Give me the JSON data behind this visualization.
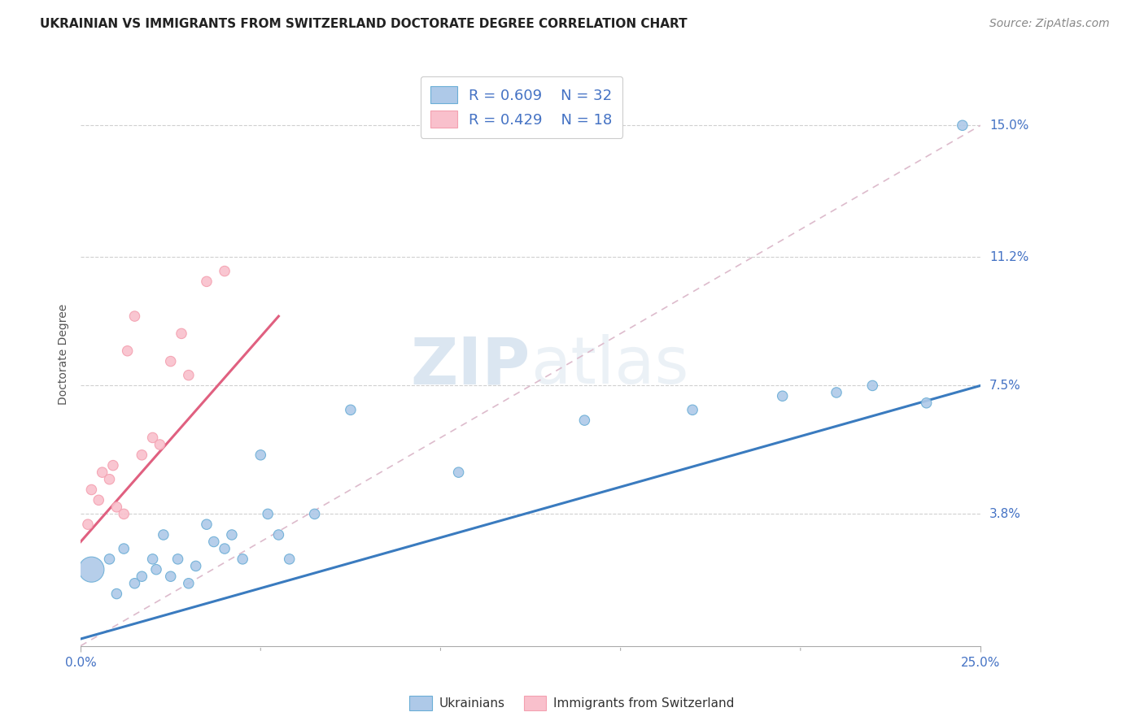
{
  "title": "UKRAINIAN VS IMMIGRANTS FROM SWITZERLAND DOCTORATE DEGREE CORRELATION CHART",
  "source_text": "Source: ZipAtlas.com",
  "ylabel": "Doctorate Degree",
  "y_tick_values": [
    3.8,
    7.5,
    11.2,
    15.0
  ],
  "y_tick_labels": [
    "3.8%",
    "7.5%",
    "11.2%",
    "15.0%"
  ],
  "xlim": [
    0.0,
    25.0
  ],
  "ylim": [
    0.0,
    16.8
  ],
  "legend_r1": "R = 0.609",
  "legend_n1": "N = 32",
  "legend_r2": "R = 0.429",
  "legend_n2": "N = 18",
  "blue_color": "#6baed6",
  "pink_color": "#f4a0b0",
  "blue_fill": "#aec9e8",
  "pink_fill": "#f9c0cc",
  "line_blue": "#3a7bbf",
  "line_pink": "#e06080",
  "watermark_text": "ZIPatlas",
  "blue_scatter_x": [
    0.3,
    0.8,
    1.0,
    1.2,
    1.5,
    1.7,
    2.0,
    2.1,
    2.3,
    2.5,
    2.7,
    3.0,
    3.2,
    3.5,
    3.7,
    4.0,
    4.2,
    4.5,
    5.0,
    5.2,
    5.5,
    5.8,
    6.5,
    7.5,
    10.5,
    14.0,
    17.0,
    19.5,
    21.0,
    22.0,
    23.5,
    24.5
  ],
  "blue_scatter_y": [
    2.2,
    2.5,
    1.5,
    2.8,
    1.8,
    2.0,
    2.5,
    2.2,
    3.2,
    2.0,
    2.5,
    1.8,
    2.3,
    3.5,
    3.0,
    2.8,
    3.2,
    2.5,
    5.5,
    3.8,
    3.2,
    2.5,
    3.8,
    6.8,
    5.0,
    6.5,
    6.8,
    7.2,
    7.3,
    7.5,
    7.0,
    15.0
  ],
  "blue_scatter_sizes": [
    80,
    80,
    80,
    80,
    80,
    80,
    80,
    80,
    80,
    80,
    80,
    80,
    80,
    80,
    80,
    80,
    80,
    80,
    80,
    80,
    80,
    80,
    80,
    80,
    80,
    80,
    80,
    80,
    80,
    80,
    80,
    80
  ],
  "blue_large_idx": 0,
  "blue_large_size": 500,
  "pink_scatter_x": [
    0.2,
    0.3,
    0.5,
    0.6,
    0.8,
    0.9,
    1.0,
    1.2,
    1.3,
    1.5,
    1.7,
    2.0,
    2.2,
    2.5,
    2.8,
    3.0,
    3.5,
    4.0
  ],
  "pink_scatter_y": [
    3.5,
    4.5,
    4.2,
    5.0,
    4.8,
    5.2,
    4.0,
    3.8,
    8.5,
    9.5,
    5.5,
    6.0,
    5.8,
    8.2,
    9.0,
    7.8,
    10.5,
    10.8
  ],
  "blue_line_x": [
    0.0,
    25.0
  ],
  "blue_line_y": [
    0.2,
    7.5
  ],
  "pink_line_x": [
    0.0,
    5.5
  ],
  "pink_line_y": [
    3.0,
    9.5
  ],
  "diag_line_x": [
    0.0,
    25.0
  ],
  "diag_line_y": [
    0.0,
    15.0
  ],
  "title_fontsize": 11,
  "axis_label_fontsize": 10,
  "tick_fontsize": 11,
  "legend_fontsize": 13,
  "source_fontsize": 10
}
